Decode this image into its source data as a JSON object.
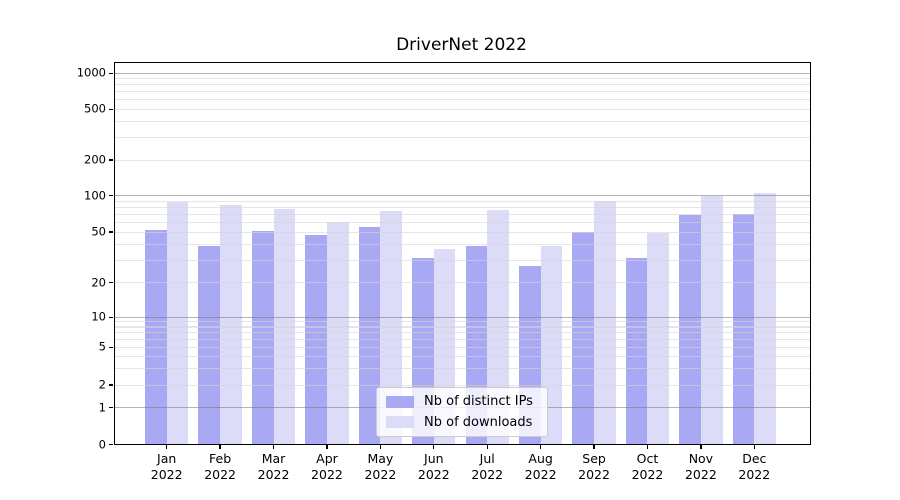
{
  "title": "DriverNet 2022",
  "chart_data": {
    "type": "bar",
    "title": "DriverNet 2022",
    "categories": [
      "Jan",
      "Feb",
      "Mar",
      "Apr",
      "May",
      "Jun",
      "Jul",
      "Aug",
      "Sep",
      "Oct",
      "Nov",
      "Dec"
    ],
    "x_year_label": "2022",
    "series": [
      {
        "name": "Nb of distinct IPs",
        "color": "#a9a9f3",
        "values": [
          52,
          39,
          51,
          47,
          55,
          31,
          39,
          27,
          50,
          31,
          69,
          70
        ]
      },
      {
        "name": "Nb of downloads",
        "color": "#dcdcf9",
        "values": [
          88,
          84,
          77,
          61,
          74,
          37,
          76,
          39,
          91,
          49,
          100,
          105
        ]
      }
    ],
    "xlabel": "",
    "ylabel": "",
    "yscale": "symlog",
    "ylim": [
      0,
      1250
    ],
    "yticks": [
      0,
      1,
      2,
      5,
      10,
      20,
      50,
      100,
      200,
      500,
      1000
    ],
    "major_gridlines": [
      1,
      10,
      100,
      1000
    ],
    "minor_gridlines": [
      2,
      3,
      4,
      5,
      6,
      7,
      8,
      9,
      20,
      30,
      40,
      50,
      60,
      70,
      80,
      90,
      200,
      300,
      400,
      500,
      600,
      700,
      800,
      900
    ],
    "grid": "both",
    "legend": {
      "position": "lower center"
    },
    "colors": {
      "background": "#ffffff",
      "major_grid": "#b5b5b5",
      "minor_grid": "#e7e7e7",
      "axis": "#000000"
    }
  }
}
